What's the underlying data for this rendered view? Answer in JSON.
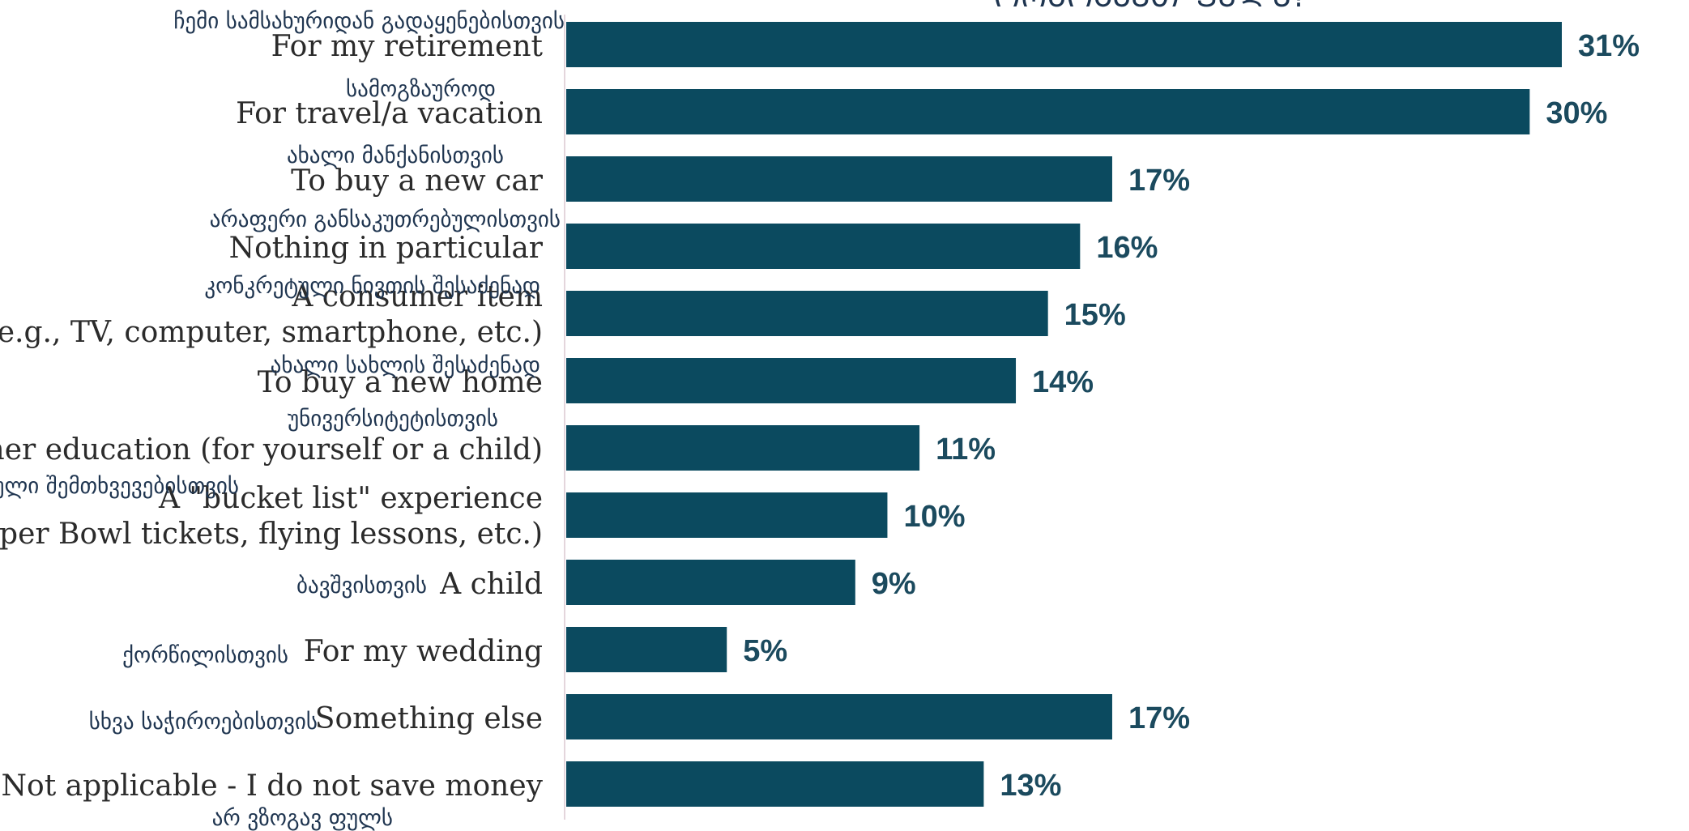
{
  "chart_data": {
    "type": "bar",
    "orientation": "horizontal",
    "title": "ᲝᲠᲖᲝᲒᲐᲕᲗ ᲤᲣᲚᲡ?",
    "categories": [
      [
        "For my retirement"
      ],
      [
        "For travel/a vacation"
      ],
      [
        "To buy a new car"
      ],
      [
        "Nothing in particular"
      ],
      [
        "A consumer item",
        "(e.g., TV, computer, smartphone, etc.)"
      ],
      [
        "To buy a new home"
      ],
      [
        "Higher education (for yourself or a child)"
      ],
      [
        "A \"bucket list\" experience",
        "(e.g., Super Bowl tickets, flying lessons, etc.)"
      ],
      [
        "A child"
      ],
      [
        "For my wedding"
      ],
      [
        "Something else"
      ],
      [
        "Not applicable - I do not save money"
      ]
    ],
    "translations": [
      "ჩემი სამსახურიდან გადაყენებისთვის",
      "სამოგზაუროდ",
      "ახალი მანქანისთვის",
      "არაფერი განსაკუთრებულისთვის",
      "კონკრეტული ნივთის შესაძენად",
      "ახალი სახლის შესაძენად",
      "უნივერსიტეტისთვის",
      "განსაკუთრებული შემთხვევებისთვის",
      "ბავშვისთვის",
      "ქორწილისთვის",
      "სხვა საჭიროებისთვის",
      "არ ვზოგავ ფულს"
    ],
    "values": [
      31,
      30,
      17,
      16,
      15,
      14,
      11,
      10,
      9,
      5,
      17,
      13
    ],
    "value_labels": [
      "31%",
      "30%",
      "17%",
      "16%",
      "15%",
      "14%",
      "11%",
      "10%",
      "9%",
      "5%",
      "17%",
      "13%"
    ],
    "unit": "%",
    "xlim": [
      0,
      31
    ],
    "grid": false,
    "bar_color": "#0b4a5f",
    "label_color": "#1b4a5e"
  }
}
